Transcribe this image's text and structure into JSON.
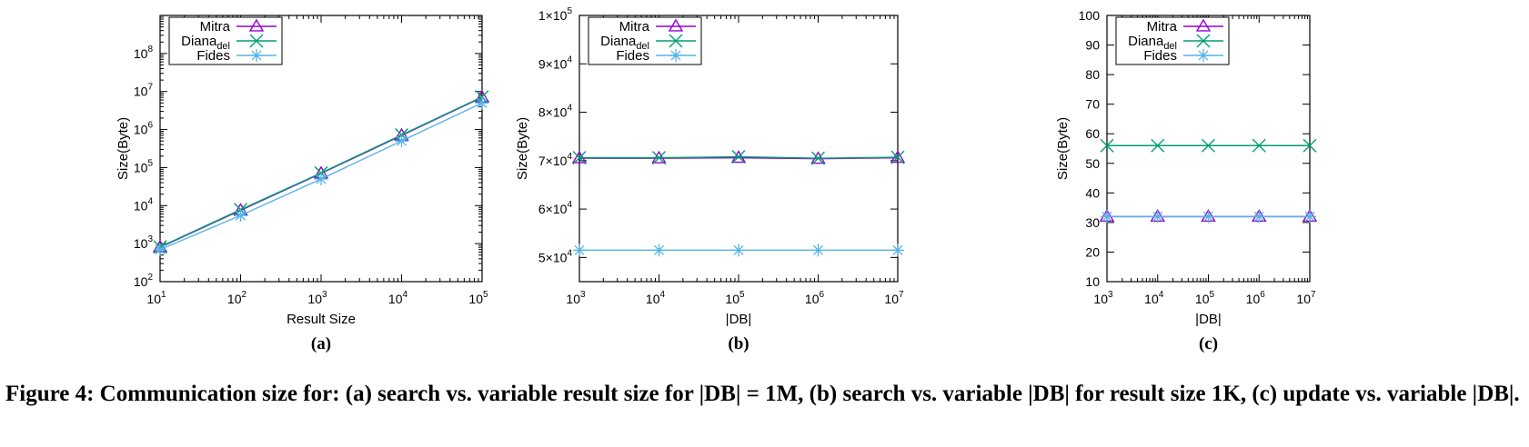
{
  "colors": {
    "Mitra": "#9400d3",
    "Diana": "#009e73",
    "Fides": "#56b4e9",
    "axis": "#000000"
  },
  "caption": "Figure 4: Communication size for: (a) search vs. variable result size for |DB| = 1M, (b) search vs. variable |DB| for result size 1K, (c) update vs. variable |DB|.",
  "chart_data": [
    {
      "type": "line",
      "panel_label": "(a)",
      "xlabel": "Result Size",
      "ylabel": "Size(Byte)",
      "x_scale": "log",
      "y_scale": "log",
      "xlim": [
        10,
        100000
      ],
      "ylim": [
        100,
        1000000000
      ],
      "x_ticks": [
        10,
        100,
        1000,
        10000,
        100000
      ],
      "x_tick_labels": [
        [
          "10",
          "1"
        ],
        [
          "10",
          "2"
        ],
        [
          "10",
          "3"
        ],
        [
          "10",
          "4"
        ],
        [
          "10",
          "5"
        ]
      ],
      "y_ticks": [
        100,
        1000,
        10000,
        100000,
        1000000,
        10000000,
        100000000
      ],
      "y_tick_labels": [
        [
          "10",
          "2"
        ],
        [
          "10",
          "3"
        ],
        [
          "10",
          "4"
        ],
        [
          "10",
          "5"
        ],
        [
          "10",
          "6"
        ],
        [
          "10",
          "7"
        ],
        [
          "10",
          "8"
        ]
      ],
      "legend_position": "top-left",
      "x": [
        10,
        100,
        1000,
        10000,
        100000
      ],
      "series": [
        {
          "name": "Mitra",
          "sub": "",
          "marker": "triangle",
          "values": [
            800,
            7500,
            70000,
            700000,
            7000000
          ]
        },
        {
          "name": "Diana",
          "sub": "del",
          "marker": "x",
          "values": [
            820,
            7800,
            72000,
            720000,
            7200000
          ]
        },
        {
          "name": "Fides",
          "sub": "",
          "marker": "star",
          "values": [
            700,
            5500,
            50000,
            500000,
            5000000
          ]
        }
      ]
    },
    {
      "type": "line",
      "panel_label": "(b)",
      "xlabel": "|DB|",
      "ylabel": "Size(Byte)",
      "x_scale": "log",
      "y_scale": "linear",
      "xlim": [
        1000,
        10000000
      ],
      "ylim": [
        45000,
        100000
      ],
      "x_ticks": [
        1000,
        10000,
        100000,
        1000000,
        10000000
      ],
      "x_tick_labels": [
        [
          "10",
          "3"
        ],
        [
          "10",
          "4"
        ],
        [
          "10",
          "5"
        ],
        [
          "10",
          "6"
        ],
        [
          "10",
          "7"
        ]
      ],
      "y_ticks": [
        50000,
        60000,
        70000,
        80000,
        90000,
        100000
      ],
      "y_tick_labels": [
        [
          "5×10",
          "4"
        ],
        [
          "6×10",
          "4"
        ],
        [
          "7×10",
          "4"
        ],
        [
          "8×10",
          "4"
        ],
        [
          "9×10",
          "4"
        ],
        [
          "1×10",
          "5"
        ]
      ],
      "legend_position": "top-left",
      "x": [
        1000,
        10000,
        100000,
        1000000,
        10000000
      ],
      "series": [
        {
          "name": "Mitra",
          "sub": "",
          "marker": "triangle",
          "values": [
            70500,
            70500,
            70600,
            70400,
            70600
          ]
        },
        {
          "name": "Diana",
          "sub": "del",
          "marker": "x",
          "values": [
            70600,
            70600,
            70800,
            70500,
            70700
          ]
        },
        {
          "name": "Fides",
          "sub": "",
          "marker": "star",
          "values": [
            51500,
            51500,
            51500,
            51500,
            51500
          ]
        }
      ]
    },
    {
      "type": "line",
      "panel_label": "(c)",
      "xlabel": "|DB|",
      "ylabel": "Size(Byte)",
      "x_scale": "log",
      "y_scale": "linear",
      "xlim": [
        1000,
        10000000
      ],
      "ylim": [
        10,
        100
      ],
      "x_ticks": [
        1000,
        10000,
        100000,
        1000000,
        10000000
      ],
      "x_tick_labels": [
        [
          "10",
          "3"
        ],
        [
          "10",
          "4"
        ],
        [
          "10",
          "5"
        ],
        [
          "10",
          "6"
        ],
        [
          "10",
          "7"
        ]
      ],
      "y_ticks": [
        10,
        20,
        30,
        40,
        50,
        60,
        70,
        80,
        90,
        100
      ],
      "y_tick_labels": [
        [
          "10",
          ""
        ],
        [
          "20",
          ""
        ],
        [
          "30",
          ""
        ],
        [
          "40",
          ""
        ],
        [
          "50",
          ""
        ],
        [
          "60",
          ""
        ],
        [
          "70",
          ""
        ],
        [
          "80",
          ""
        ],
        [
          "90",
          ""
        ],
        [
          "100",
          ""
        ]
      ],
      "legend_position": "top-left",
      "x": [
        1000,
        10000,
        100000,
        1000000,
        10000000
      ],
      "series": [
        {
          "name": "Mitra",
          "sub": "",
          "marker": "triangle",
          "values": [
            32,
            32,
            32,
            32,
            32
          ]
        },
        {
          "name": "Diana",
          "sub": "del",
          "marker": "x",
          "values": [
            56,
            56,
            56,
            56,
            56
          ]
        },
        {
          "name": "Fides",
          "sub": "",
          "marker": "star",
          "values": [
            32,
            32,
            32,
            32,
            32
          ]
        }
      ]
    }
  ]
}
